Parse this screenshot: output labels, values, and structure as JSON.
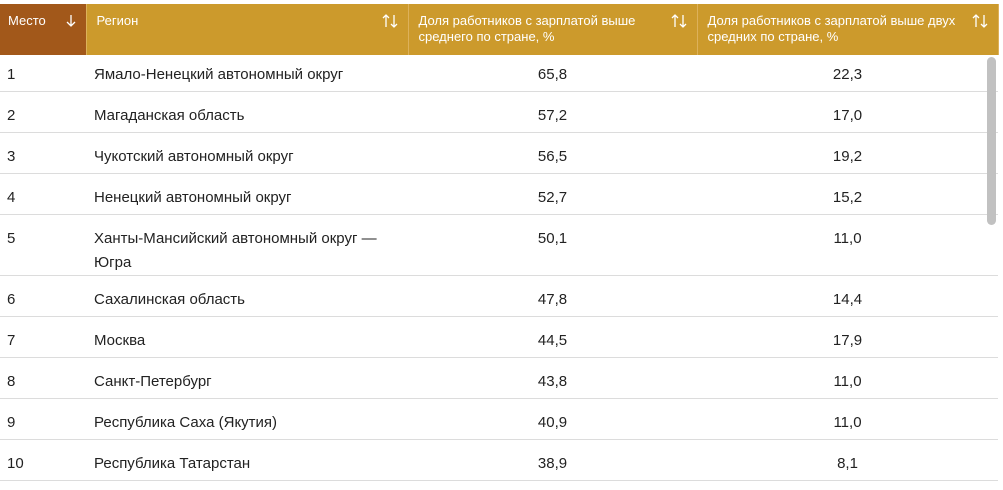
{
  "table": {
    "headers": [
      "Место",
      "Регион",
      "Доля работников с зарплатой выше среднего по стране, %",
      "Доля работников с зарплатой выше двух средних по стране, %"
    ],
    "rows": [
      [
        "1",
        "Ямало-Ненецкий автономный округ",
        "65,8",
        "22,3"
      ],
      [
        "2",
        "Магаданская область",
        "57,2",
        "17,0"
      ],
      [
        "3",
        "Чукотский автономный округ",
        "56,5",
        "19,2"
      ],
      [
        "4",
        "Ненецкий автономный округ",
        "52,7",
        "15,2"
      ],
      [
        "5",
        "Ханты-Мансийский автономный округ — Югра",
        "50,1",
        "11,0"
      ],
      [
        "6",
        "Сахалинская область",
        "47,8",
        "14,4"
      ],
      [
        "7",
        "Москва",
        "44,5",
        "17,9"
      ],
      [
        "8",
        "Санкт-Петербург",
        "43,8",
        "11,0"
      ],
      [
        "9",
        "Республика Саха (Якутия)",
        "40,9",
        "11,0"
      ],
      [
        "10",
        "Республика Татарстан",
        "38,9",
        "8,1"
      ]
    ]
  }
}
